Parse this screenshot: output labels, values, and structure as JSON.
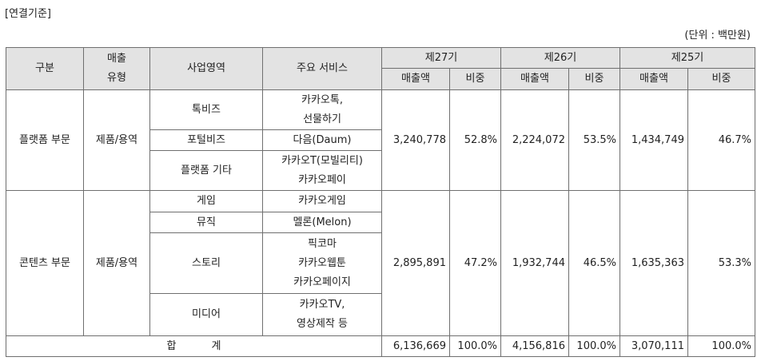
{
  "header": {
    "basis": "[연결기준]",
    "unit": "(단위 : 백만원)"
  },
  "table": {
    "columns": {
      "category": "구분",
      "sales_type_line1": "매출",
      "sales_type_line2": "유형",
      "business_area": "사업영역",
      "main_services": "주요 서비스",
      "period_27": "제27기",
      "period_26": "제26기",
      "period_25": "제25기",
      "revenue": "매출액",
      "share": "비중"
    },
    "segments": [
      {
        "name": "플랫폼 부문",
        "sales_type": "제품/용역",
        "areas": [
          {
            "area": "톡비즈",
            "services": [
              "카카오톡,",
              "선물하기"
            ]
          },
          {
            "area": "포털비즈",
            "services": [
              "다음(Daum)"
            ]
          },
          {
            "area": "플랫폼 기타",
            "services": [
              "카카오T(모빌리티)",
              "카카오페이"
            ]
          }
        ],
        "p27_revenue": "3,240,778",
        "p27_share": "52.8%",
        "p26_revenue": "2,224,072",
        "p26_share": "53.5%",
        "p25_revenue": "1,434,749",
        "p25_share": "46.7%"
      },
      {
        "name": "콘텐츠 부문",
        "sales_type": "제품/용역",
        "areas": [
          {
            "area": "게임",
            "services": [
              "카카오게임"
            ]
          },
          {
            "area": "뮤직",
            "services": [
              "멜론(Melon)"
            ]
          },
          {
            "area": "스토리",
            "services": [
              "픽코마",
              "카카오웹툰",
              "카카오페이지"
            ]
          },
          {
            "area": "미디어",
            "services": [
              "카카오TV,",
              "영상제작 등"
            ]
          }
        ],
        "p27_revenue": "2,895,891",
        "p27_share": "47.2%",
        "p26_revenue": "1,932,744",
        "p26_share": "46.5%",
        "p25_revenue": "1,635,363",
        "p25_share": "53.3%"
      }
    ],
    "total": {
      "label_part1": "합",
      "label_part2": "계",
      "p27_revenue": "6,136,669",
      "p27_share": "100.0%",
      "p26_revenue": "4,156,816",
      "p26_share": "100.0%",
      "p25_revenue": "3,070,111",
      "p25_share": "100.0%"
    }
  }
}
